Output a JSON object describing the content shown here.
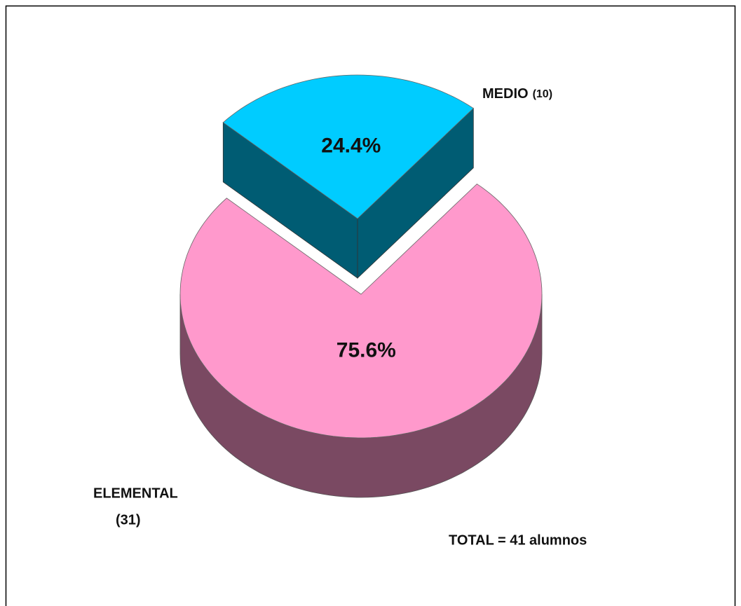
{
  "chart_data": {
    "type": "pie3d",
    "categories": [
      "MEDIO",
      "ELEMENTAL"
    ],
    "values": [
      24.4,
      75.6
    ],
    "value_labels": [
      "24.4%",
      "75.6%"
    ],
    "counts": [
      {
        "value": 10,
        "label": "(10)"
      },
      {
        "value": 31,
        "label": "(31)"
      }
    ],
    "colors": [
      "#00ccff",
      "#ff99cc"
    ],
    "annotation": "TOTAL = 41 alumnos"
  }
}
